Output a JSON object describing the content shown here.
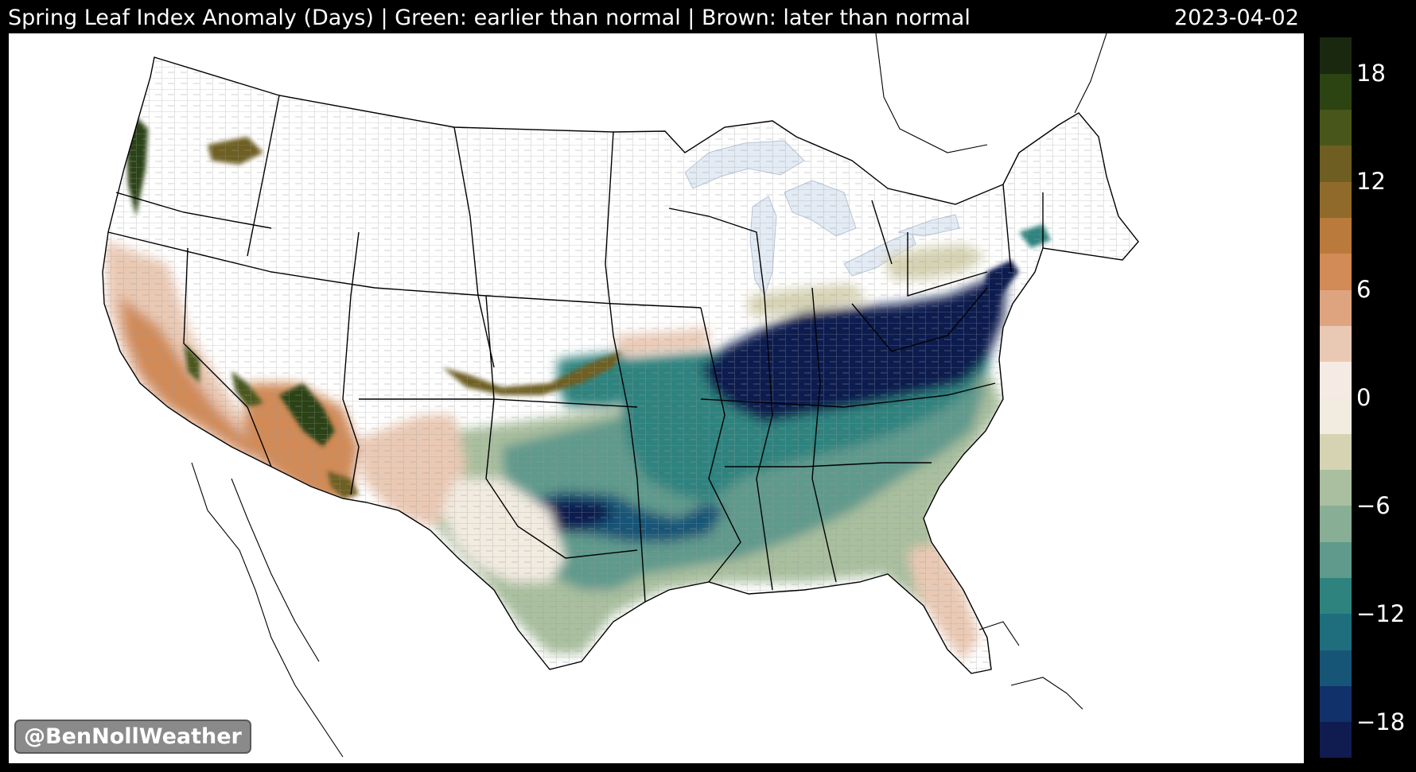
{
  "header": {
    "title": "Spring Leaf Index Anomaly (Days) | Green: earlier than normal | Brown: later than normal",
    "date": "2023-04-02"
  },
  "watermark": "@BenNollWeather",
  "map": {
    "region": "Contiguous United States",
    "variable": "Spring Leaf Index anomaly",
    "units": "days",
    "background_color": "#ffffff",
    "boundaries": [
      "state lines",
      "county lines",
      "Great Lakes"
    ]
  },
  "colorbar": {
    "range": [
      -20,
      20
    ],
    "step": 2,
    "colors": [
      "#101c4f",
      "#10316a",
      "#175577",
      "#1f6e7e",
      "#2e837f",
      "#5f9a8c",
      "#88ae96",
      "#aabea0",
      "#d6d3b3",
      "#f2ebe0",
      "#f6ebe4",
      "#eac9b4",
      "#dea47f",
      "#d28a56",
      "#b97a3c",
      "#8f6a2b",
      "#6e5e22",
      "#49561b",
      "#2c4312",
      "#1b2810"
    ],
    "tick_labels": [
      {
        "value": 18,
        "label": "18"
      },
      {
        "value": 12,
        "label": "12"
      },
      {
        "value": 6,
        "label": "6"
      },
      {
        "value": 0,
        "label": "0"
      },
      {
        "value": -6,
        "label": "−6"
      },
      {
        "value": -12,
        "label": "−12"
      },
      {
        "value": -18,
        "label": "−18"
      }
    ]
  }
}
